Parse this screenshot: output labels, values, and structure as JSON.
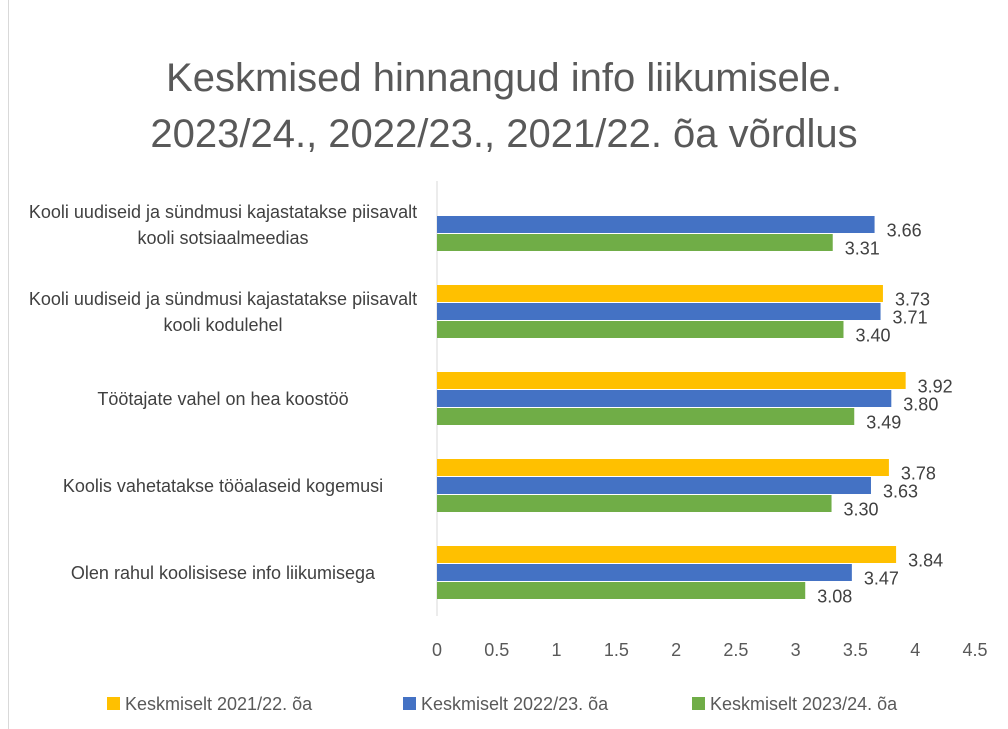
{
  "chart_data": {
    "type": "bar",
    "orientation": "horizontal",
    "title": "Keskmised hinnangud info liikumisele. 2023/24., 2022/23., 2021/22. õa võrdlus",
    "categories": [
      "Kooli uudiseid ja sündmusi kajastatakse piisavalt kooli sotsiaalmeedias",
      "Kooli uudiseid ja sündmusi kajastatakse piisavalt kooli kodulehel",
      "Töötajate vahel on hea koostöö",
      "Koolis vahetatakse tööalaseid kogemusi",
      "Olen rahul koolisisese info liikumisega"
    ],
    "series": [
      {
        "name": "Keskmiselt 2021/22. õa",
        "color": "#ffc000",
        "values": [
          null,
          3.73,
          3.92,
          3.78,
          3.84
        ],
        "value_labels": [
          null,
          "3.73",
          "3.92",
          "3.78",
          "3.84"
        ]
      },
      {
        "name": "Keskmiselt 2022/23. õa",
        "color": "#4472c4",
        "values": [
          3.66,
          3.71,
          3.8,
          3.63,
          3.47
        ],
        "value_labels": [
          "3.66",
          "3.71",
          "3.80",
          "3.63",
          "3.47"
        ]
      },
      {
        "name": "Keskmiselt 2023/24. õa",
        "color": "#70ad47",
        "values": [
          3.31,
          3.4,
          3.49,
          3.3,
          3.08
        ],
        "value_labels": [
          "3.31",
          "3.40",
          "3.49",
          "3.30",
          "3.08"
        ]
      }
    ],
    "xlim": [
      0,
      4.5
    ],
    "xticks": [
      0,
      0.5,
      1,
      1.5,
      2,
      2.5,
      3,
      3.5,
      4,
      4.5
    ],
    "legend": "bottom"
  }
}
